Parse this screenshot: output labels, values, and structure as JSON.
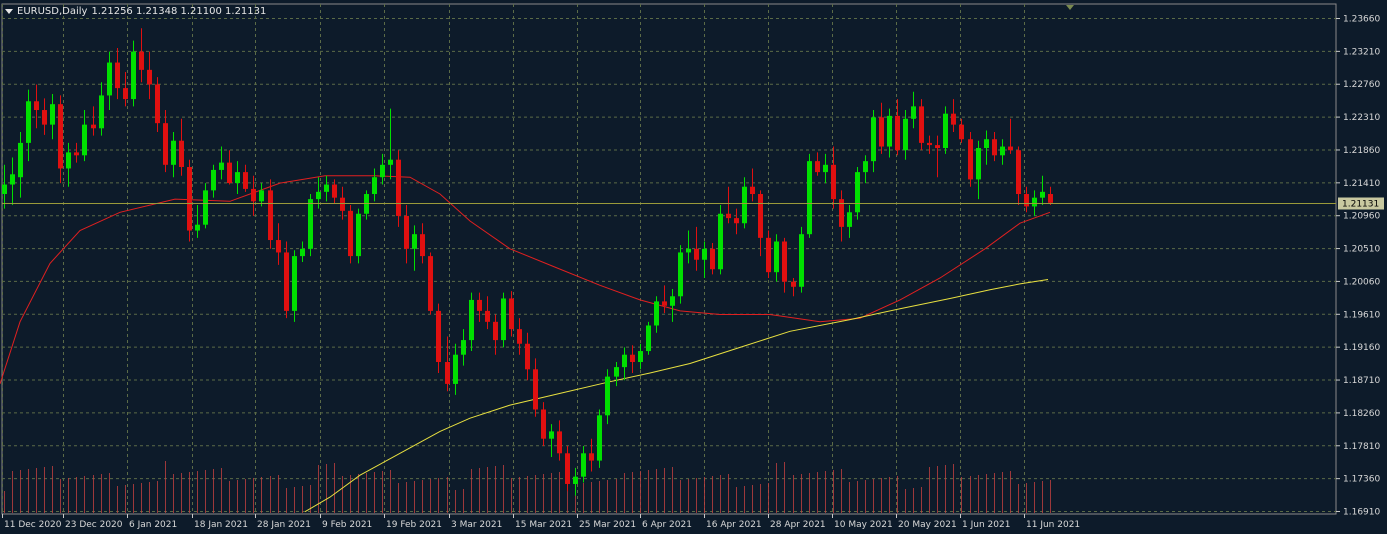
{
  "header": {
    "symbol": "EURUSD,Daily",
    "ohlc": "1.21256 1.21348 1.21100 1.21131"
  },
  "colors": {
    "background": "#0d1b2a",
    "grid": "#5b6b47",
    "bull": "#00e000",
    "bear": "#e01010",
    "ma_fast": "#e02020",
    "ma_slow": "#e8e040",
    "bid_line": "#9a9a3a",
    "volume": "#c04040",
    "axis": "#c8c8c8"
  },
  "chart_data": {
    "type": "candlestick",
    "title": "EURUSD,Daily",
    "y_range": [
      1.1691,
      1.2366
    ],
    "y_ticks": [
      "1.23660",
      "1.23210",
      "1.22760",
      "1.22310",
      "1.21860",
      "1.21410",
      "1.20960",
      "1.20510",
      "1.20060",
      "1.19610",
      "1.19160",
      "1.18710",
      "1.18260",
      "1.17810",
      "1.17360",
      "1.16910"
    ],
    "x_tick_labels": [
      "11 Dec 2020",
      "23 Dec 2020",
      "6 Jan 2021",
      "18 Jan 2021",
      "28 Jan 2021",
      "9 Feb 2021",
      "19 Feb 2021",
      "3 Mar 2021",
      "15 Mar 2021",
      "25 Mar 2021",
      "6 Apr 2021",
      "16 Apr 2021",
      "28 Apr 2021",
      "10 May 2021",
      "20 May 2021",
      "1 Jun 2021",
      "11 Jun 2021"
    ],
    "current_price": "1.21131",
    "grid": true,
    "candles": [
      [
        1.2125,
        1.2165,
        1.2105,
        1.2138
      ],
      [
        1.2138,
        1.2175,
        1.211,
        1.2152
      ],
      [
        1.2148,
        1.221,
        1.212,
        1.2195
      ],
      [
        1.2195,
        1.2268,
        1.217,
        1.2252
      ],
      [
        1.2252,
        1.2275,
        1.2215,
        1.224
      ],
      [
        1.224,
        1.2256,
        1.2206,
        1.222
      ],
      [
        1.222,
        1.2262,
        1.22,
        1.2248
      ],
      [
        1.2248,
        1.226,
        1.214,
        1.216
      ],
      [
        1.216,
        1.2195,
        1.2135,
        1.2182
      ],
      [
        1.2182,
        1.2195,
        1.2168,
        1.2178
      ],
      [
        1.2178,
        1.224,
        1.217,
        1.222
      ],
      [
        1.222,
        1.2245,
        1.2205,
        1.2215
      ],
      [
        1.2215,
        1.2278,
        1.2205,
        1.226
      ],
      [
        1.226,
        1.232,
        1.224,
        1.2305
      ],
      [
        1.2305,
        1.2325,
        1.2255,
        1.227
      ],
      [
        1.227,
        1.2292,
        1.2245,
        1.2255
      ],
      [
        1.2255,
        1.2335,
        1.2245,
        1.232
      ],
      [
        1.232,
        1.2352,
        1.2278,
        1.2295
      ],
      [
        1.2295,
        1.232,
        1.2255,
        1.2275
      ],
      [
        1.2275,
        1.2285,
        1.221,
        1.2222
      ],
      [
        1.2222,
        1.224,
        1.2155,
        1.2165
      ],
      [
        1.2165,
        1.221,
        1.2148,
        1.2198
      ],
      [
        1.2198,
        1.2228,
        1.215,
        1.2162
      ],
      [
        1.2162,
        1.2172,
        1.206,
        1.2075
      ],
      [
        1.2075,
        1.211,
        1.2065,
        1.2083
      ],
      [
        1.2083,
        1.214,
        1.2078,
        1.213
      ],
      [
        1.213,
        1.2165,
        1.212,
        1.2158
      ],
      [
        1.2158,
        1.219,
        1.2145,
        1.2168
      ],
      [
        1.2168,
        1.2185,
        1.2138,
        1.214
      ],
      [
        1.214,
        1.217,
        1.2125,
        1.2155
      ],
      [
        1.2155,
        1.2165,
        1.2128,
        1.2132
      ],
      [
        1.2132,
        1.215,
        1.2095,
        1.2115
      ],
      [
        1.2115,
        1.214,
        1.2108,
        1.213
      ],
      [
        1.213,
        1.2145,
        1.205,
        1.2062
      ],
      [
        1.2062,
        1.2085,
        1.2028,
        1.2045
      ],
      [
        1.2045,
        1.206,
        1.1955,
        1.1965
      ],
      [
        1.1965,
        1.2048,
        1.195,
        1.204
      ],
      [
        1.204,
        1.206,
        1.2032,
        1.205
      ],
      [
        1.205,
        1.2125,
        1.204,
        1.2118
      ],
      [
        1.2118,
        1.2148,
        1.2105,
        1.2128
      ],
      [
        1.2128,
        1.215,
        1.2115,
        1.2138
      ],
      [
        1.2138,
        1.2145,
        1.2112,
        1.212
      ],
      [
        1.212,
        1.2135,
        1.209,
        1.2102
      ],
      [
        1.2102,
        1.211,
        1.203,
        1.204
      ],
      [
        1.204,
        1.2105,
        1.203,
        1.2098
      ],
      [
        1.2098,
        1.213,
        1.209,
        1.2125
      ],
      [
        1.2125,
        1.216,
        1.2115,
        1.2148
      ],
      [
        1.2148,
        1.218,
        1.2138,
        1.2165
      ],
      [
        1.2165,
        1.2242,
        1.2145,
        1.2172
      ],
      [
        1.2172,
        1.2185,
        1.208,
        1.2095
      ],
      [
        1.2095,
        1.211,
        1.203,
        1.205
      ],
      [
        1.205,
        1.2082,
        1.202,
        1.207
      ],
      [
        1.207,
        1.2085,
        1.203,
        1.204
      ],
      [
        1.204,
        1.2045,
        1.196,
        1.1965
      ],
      [
        1.1965,
        1.1975,
        1.188,
        1.1895
      ],
      [
        1.1895,
        1.193,
        1.1855,
        1.1865
      ],
      [
        1.1865,
        1.192,
        1.185,
        1.1905
      ],
      [
        1.1905,
        1.194,
        1.189,
        1.1925
      ],
      [
        1.1925,
        1.199,
        1.191,
        1.198
      ],
      [
        1.198,
        1.199,
        1.195,
        1.1965
      ],
      [
        1.1965,
        1.1985,
        1.194,
        1.195
      ],
      [
        1.195,
        1.196,
        1.1905,
        1.1925
      ],
      [
        1.1925,
        1.199,
        1.1915,
        1.1982
      ],
      [
        1.1982,
        1.1992,
        1.193,
        1.194
      ],
      [
        1.194,
        1.1955,
        1.1905,
        1.192
      ],
      [
        1.192,
        1.1935,
        1.187,
        1.1885
      ],
      [
        1.1885,
        1.19,
        1.182,
        1.183
      ],
      [
        1.183,
        1.184,
        1.178,
        1.179
      ],
      [
        1.179,
        1.181,
        1.1765,
        1.18
      ],
      [
        1.18,
        1.1815,
        1.176,
        1.177
      ],
      [
        1.177,
        1.178,
        1.1718,
        1.1728
      ],
      [
        1.1728,
        1.175,
        1.1712,
        1.1738
      ],
      [
        1.1738,
        1.178,
        1.173,
        1.177
      ],
      [
        1.177,
        1.179,
        1.1745,
        1.176
      ],
      [
        1.176,
        1.183,
        1.175,
        1.1822
      ],
      [
        1.1822,
        1.1885,
        1.181,
        1.1875
      ],
      [
        1.1875,
        1.1895,
        1.1862,
        1.1888
      ],
      [
        1.1888,
        1.1915,
        1.187,
        1.1905
      ],
      [
        1.1905,
        1.1918,
        1.188,
        1.1895
      ],
      [
        1.1895,
        1.192,
        1.1885,
        1.191
      ],
      [
        1.191,
        1.195,
        1.1905,
        1.1945
      ],
      [
        1.1945,
        1.1985,
        1.1935,
        1.1978
      ],
      [
        1.1978,
        1.2,
        1.1962,
        1.1972
      ],
      [
        1.1972,
        1.1995,
        1.195,
        1.1985
      ],
      [
        1.1985,
        1.2055,
        1.1975,
        1.2045
      ],
      [
        1.2045,
        1.2075,
        1.203,
        1.205
      ],
      [
        1.205,
        1.208,
        1.202,
        1.2035
      ],
      [
        1.2035,
        1.206,
        1.201,
        1.205
      ],
      [
        1.205,
        1.2058,
        1.2015,
        1.2022
      ],
      [
        1.2022,
        1.211,
        1.2015,
        1.2098
      ],
      [
        1.2098,
        1.2135,
        1.2085,
        1.2092
      ],
      [
        1.2092,
        1.2105,
        1.207,
        1.2085
      ],
      [
        1.2085,
        1.2148,
        1.2078,
        1.2135
      ],
      [
        1.2135,
        1.216,
        1.2115,
        1.2125
      ],
      [
        1.2125,
        1.213,
        1.204,
        1.2065
      ],
      [
        1.2065,
        1.2075,
        1.201,
        1.2018
      ],
      [
        1.2018,
        1.207,
        1.2005,
        1.206
      ],
      [
        1.206,
        1.2065,
        1.199,
        1.2005
      ],
      [
        1.2005,
        1.201,
        1.1985,
        1.1998
      ],
      [
        1.1998,
        1.208,
        1.199,
        1.207
      ],
      [
        1.207,
        1.218,
        1.2065,
        1.217
      ],
      [
        1.217,
        1.2182,
        1.215,
        1.2155
      ],
      [
        1.2155,
        1.218,
        1.214,
        1.2165
      ],
      [
        1.2165,
        1.219,
        1.2105,
        1.2118
      ],
      [
        1.2118,
        1.213,
        1.206,
        1.208
      ],
      [
        1.208,
        1.211,
        1.2065,
        1.21
      ],
      [
        1.21,
        1.2162,
        1.209,
        1.2155
      ],
      [
        1.2155,
        1.2178,
        1.214,
        1.217
      ],
      [
        1.217,
        1.224,
        1.2155,
        1.223
      ],
      [
        1.223,
        1.225,
        1.218,
        1.219
      ],
      [
        1.219,
        1.2242,
        1.2175,
        1.2232
      ],
      [
        1.2232,
        1.2255,
        1.2178,
        1.2185
      ],
      [
        1.2185,
        1.224,
        1.2172,
        1.2228
      ],
      [
        1.2228,
        1.2265,
        1.2215,
        1.2245
      ],
      [
        1.2245,
        1.2255,
        1.2185,
        1.2195
      ],
      [
        1.2195,
        1.2205,
        1.218,
        1.2192
      ],
      [
        1.2192,
        1.2205,
        1.2148,
        1.2188
      ],
      [
        1.2188,
        1.2245,
        1.218,
        1.2235
      ],
      [
        1.2235,
        1.2255,
        1.221,
        1.222
      ],
      [
        1.222,
        1.2228,
        1.2195,
        1.22
      ],
      [
        1.22,
        1.221,
        1.2135,
        1.2145
      ],
      [
        1.2145,
        1.2198,
        1.2118,
        1.2188
      ],
      [
        1.2188,
        1.2212,
        1.2165,
        1.22
      ],
      [
        1.22,
        1.221,
        1.217,
        1.2178
      ],
      [
        1.2178,
        1.22,
        1.2165,
        1.219
      ],
      [
        1.219,
        1.2228,
        1.218,
        1.2185
      ],
      [
        1.2185,
        1.219,
        1.211,
        1.2125
      ],
      [
        1.2125,
        1.2135,
        1.21,
        1.2108
      ],
      [
        1.2108,
        1.213,
        1.2095,
        1.212
      ],
      [
        1.212,
        1.215,
        1.211,
        1.2128
      ],
      [
        1.2125,
        1.2135,
        1.211,
        1.2113
      ]
    ],
    "ma_fast": {
      "start": 1.1865,
      "points": [
        [
          0,
          1.1865
        ],
        [
          20,
          1.195
        ],
        [
          50,
          1.203
        ],
        [
          80,
          1.2075
        ],
        [
          120,
          1.21
        ],
        [
          175,
          1.2118
        ],
        [
          230,
          1.2115
        ],
        [
          280,
          1.214
        ],
        [
          325,
          1.215
        ],
        [
          375,
          1.215
        ],
        [
          410,
          1.2148
        ],
        [
          440,
          1.2125
        ],
        [
          470,
          1.2088
        ],
        [
          510,
          1.205
        ],
        [
          555,
          1.2025
        ],
        [
          600,
          1.2
        ],
        [
          640,
          1.198
        ],
        [
          680,
          1.1965
        ],
        [
          720,
          1.196
        ],
        [
          770,
          1.196
        ],
        [
          820,
          1.195
        ],
        [
          860,
          1.1955
        ],
        [
          900,
          1.198
        ],
        [
          940,
          1.201
        ],
        [
          985,
          1.205
        ],
        [
          1020,
          1.2085
        ],
        [
          1050,
          1.21
        ]
      ]
    },
    "ma_slow": {
      "points": [
        [
          305,
          1.169
        ],
        [
          330,
          1.171
        ],
        [
          360,
          1.174
        ],
        [
          400,
          1.177
        ],
        [
          440,
          1.18
        ],
        [
          470,
          1.1818
        ],
        [
          510,
          1.1836
        ],
        [
          560,
          1.1852
        ],
        [
          610,
          1.1868
        ],
        [
          650,
          1.188
        ],
        [
          690,
          1.1893
        ],
        [
          740,
          1.1915
        ],
        [
          790,
          1.1937
        ],
        [
          850,
          1.1953
        ],
        [
          900,
          1.1968
        ],
        [
          950,
          1.1982
        ],
        [
          990,
          1.1994
        ],
        [
          1020,
          1.2002
        ],
        [
          1048,
          1.2008
        ]
      ]
    }
  }
}
